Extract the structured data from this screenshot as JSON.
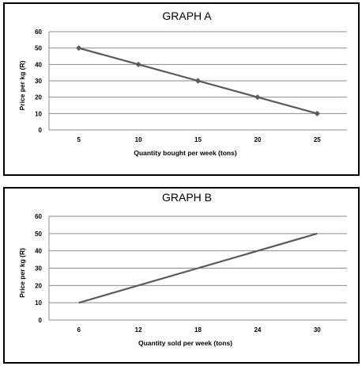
{
  "chart_data": [
    {
      "type": "line",
      "title": "GRAPH A",
      "xlabel": "Quantity bought per week (tons)",
      "ylabel": "Price per kg (R)",
      "categories": [
        "5",
        "10",
        "15",
        "20",
        "25"
      ],
      "values": [
        50,
        40,
        30,
        20,
        10
      ],
      "yticks": [
        "0",
        "10",
        "20",
        "30",
        "40",
        "50",
        "60"
      ],
      "ylim": [
        0,
        60
      ],
      "markers": "diamond",
      "grid": true,
      "line_color": "#595959"
    },
    {
      "type": "line",
      "title": "GRAPH B",
      "xlabel": "Quantity sold per week (tons)",
      "ylabel": "Price per kg (R)",
      "categories": [
        "6",
        "12",
        "18",
        "24",
        "30"
      ],
      "values": [
        10,
        20,
        30,
        40,
        50
      ],
      "yticks": [
        "0",
        "10",
        "20",
        "30",
        "40",
        "50",
        "60"
      ],
      "ylim": [
        0,
        60
      ],
      "markers": "none",
      "grid": true,
      "line_color": "#595959"
    }
  ]
}
